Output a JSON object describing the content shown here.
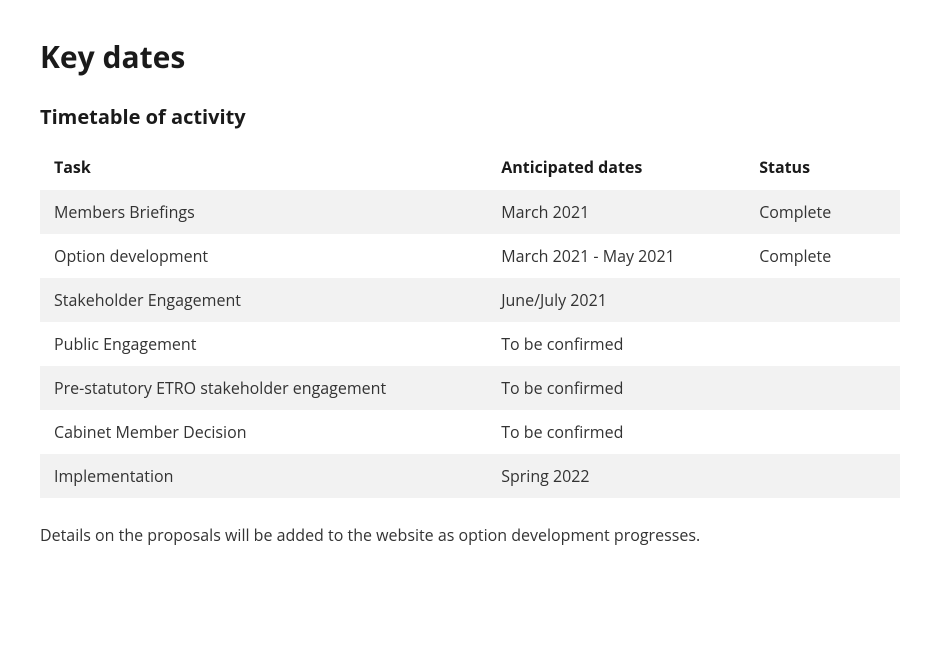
{
  "heading": "Key dates",
  "subheading": "Timetable of activity",
  "table": {
    "columns": [
      "Task",
      "Anticipated dates",
      "Status"
    ],
    "rows": [
      [
        "Members Briefings",
        "March 2021",
        "Complete"
      ],
      [
        "Option development",
        "March 2021 - May 2021",
        "Complete"
      ],
      [
        "Stakeholder Engagement",
        "June/July 2021",
        ""
      ],
      [
        "Public Engagement",
        "To be confirmed",
        ""
      ],
      [
        "Pre-statutory ETRO stakeholder engagement",
        "To be confirmed",
        ""
      ],
      [
        "Cabinet Member Decision",
        "To be confirmed",
        ""
      ],
      [
        "Implementation",
        "Spring 2022",
        ""
      ]
    ],
    "column_widths": [
      "52%",
      "30%",
      "18%"
    ],
    "header_bg": "#ffffff",
    "row_odd_bg": "#f2f2f2",
    "row_even_bg": "#ffffff",
    "text_color": "#333333",
    "header_color": "#1a1a1a"
  },
  "footer_note": "Details on the proposals will be added to the website as option development progresses."
}
